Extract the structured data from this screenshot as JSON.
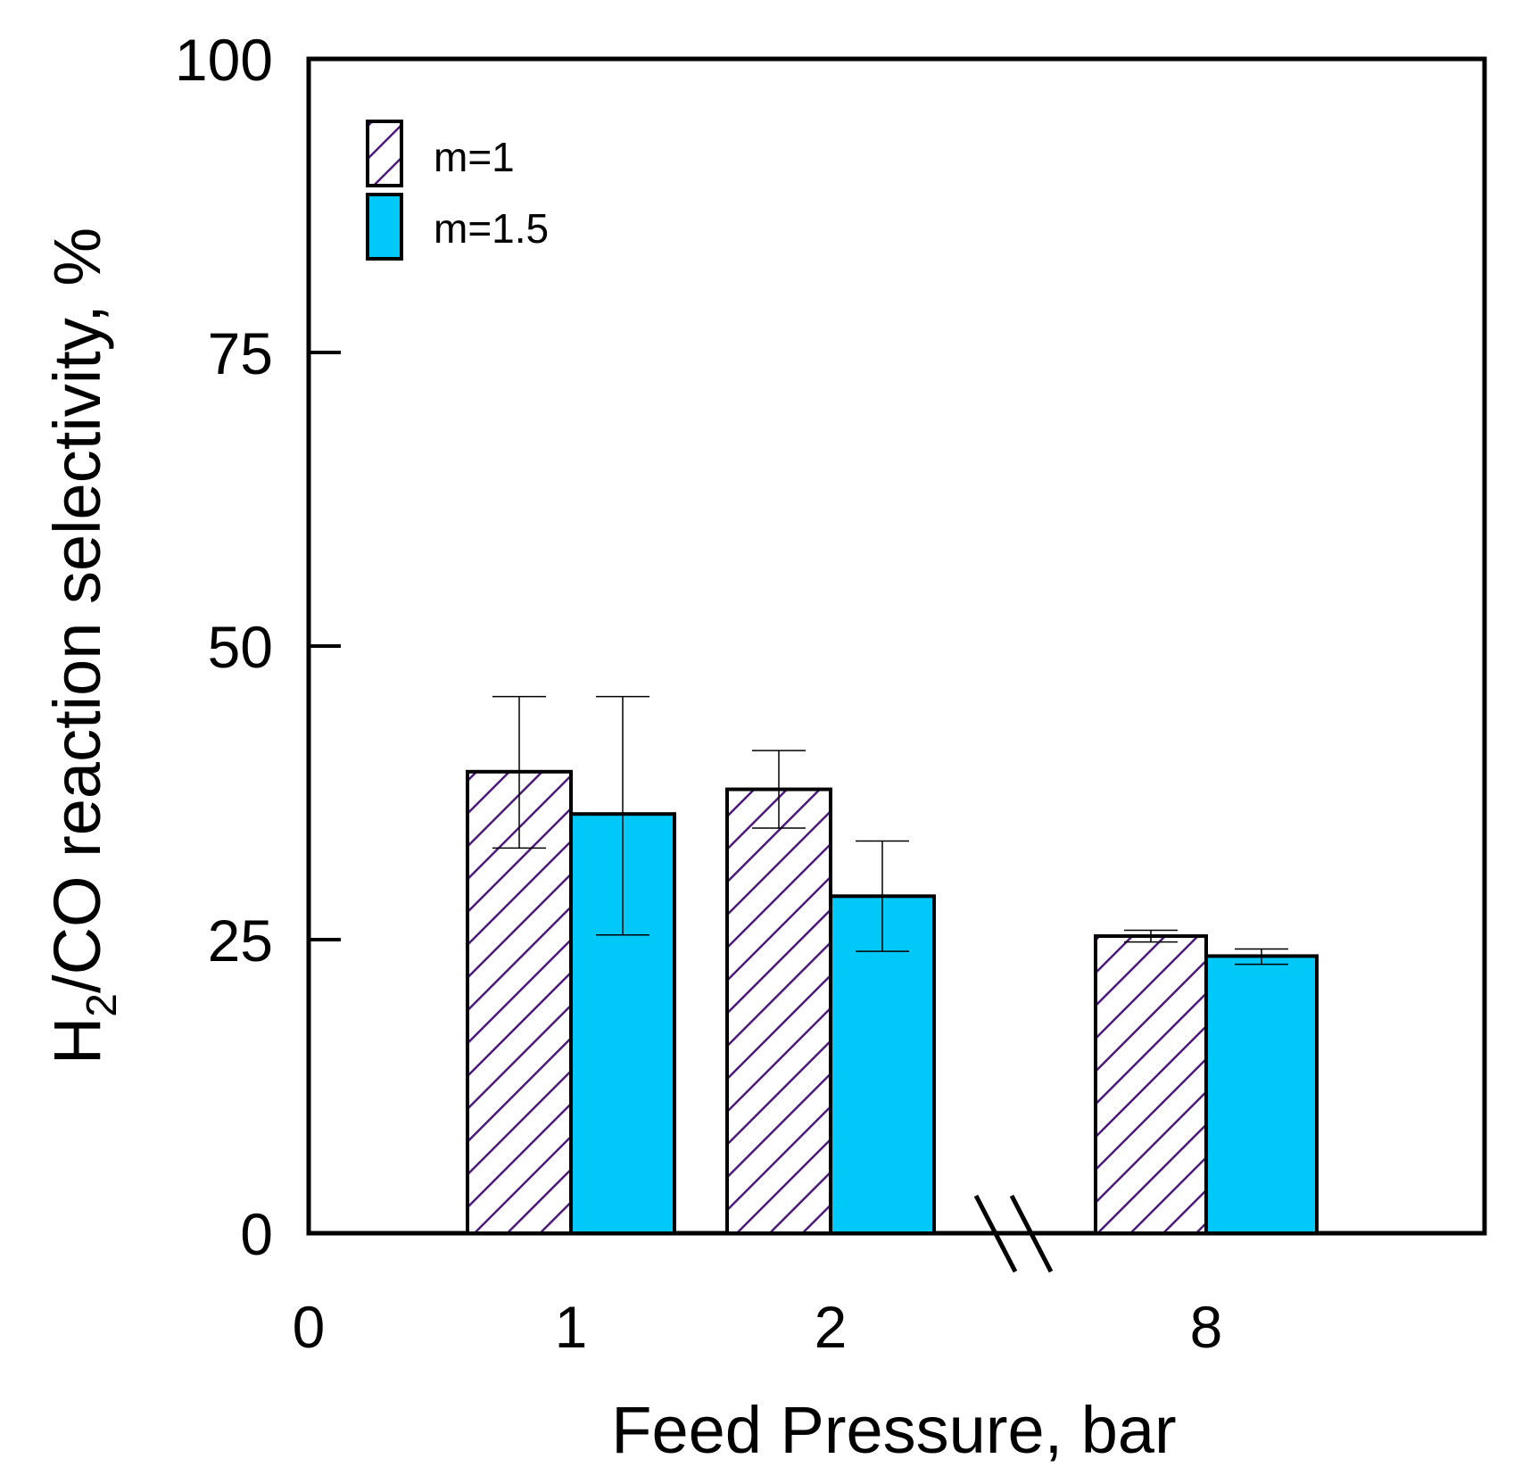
{
  "chart_data": {
    "type": "bar",
    "title": "",
    "xlabel": "Feed Pressure, bar",
    "ylabel_main": "H",
    "ylabel_sub": "2",
    "ylabel_rest": "/CO reaction selectivity, %",
    "ylim": [
      0,
      100
    ],
    "yticks": [
      "0",
      "25",
      "50",
      "75",
      "100"
    ],
    "ytick_values": [
      0,
      25,
      50,
      75,
      100
    ],
    "x_origin_label": "0",
    "categories": [
      "1",
      "2",
      "8"
    ],
    "axis_break": "between 2 and 8",
    "series": [
      {
        "name": "m=1",
        "pattern": "hatched",
        "stripe_color": "#4b1a7a",
        "values": [
          39.3,
          37.8,
          25.3
        ],
        "err_low": [
          6.5,
          3.3,
          0.5
        ],
        "err_high": [
          6.4,
          3.3,
          0.5
        ]
      },
      {
        "name": "m=1.5",
        "pattern": "solid",
        "fill_color": "#00c8f8",
        "values": [
          35.7,
          28.7,
          23.6
        ],
        "err_low": [
          10.3,
          4.7,
          0.7
        ],
        "err_high": [
          10.0,
          4.7,
          0.6
        ]
      }
    ]
  }
}
